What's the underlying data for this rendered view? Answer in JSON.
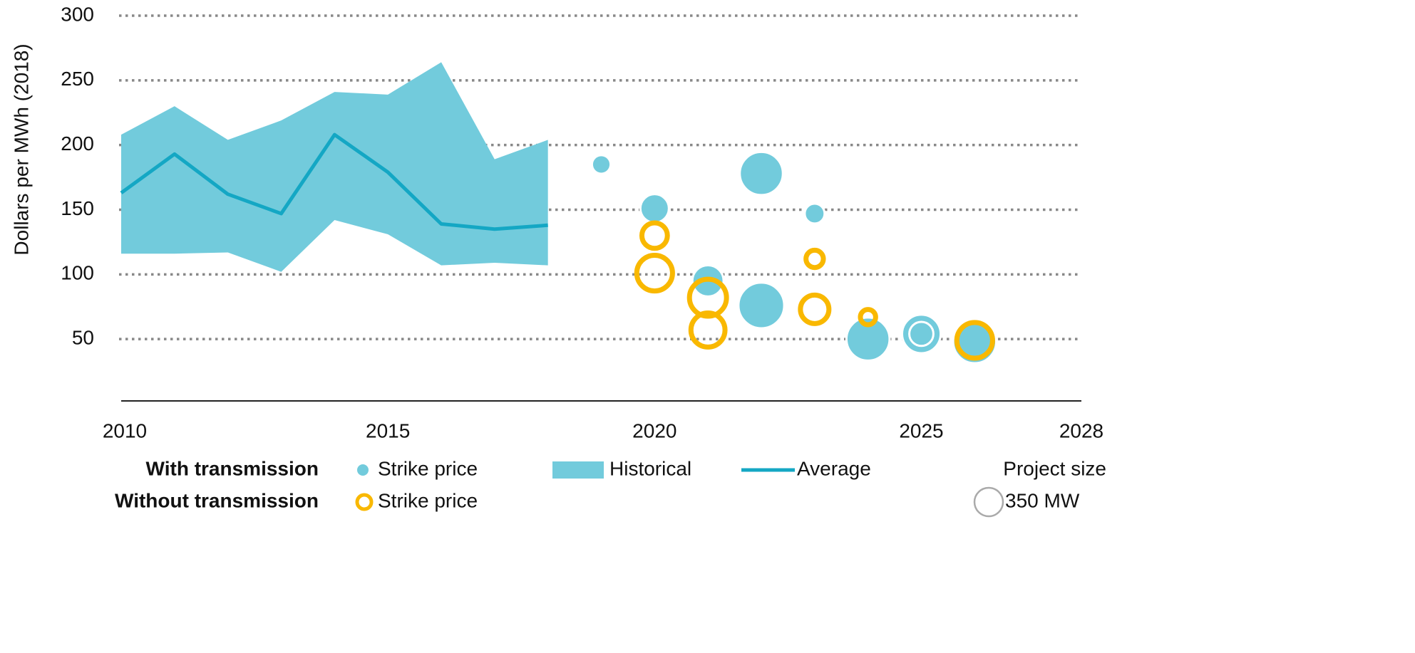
{
  "chart_data": {
    "type": "bubble",
    "y_label": "Dollars per MWh (2018)",
    "xlim": [
      2010,
      2028
    ],
    "xticks": [
      2010,
      2015,
      2020,
      2025,
      2028
    ],
    "ylim": [
      0,
      300
    ],
    "yticks": [
      50,
      100,
      150,
      200,
      250,
      300
    ],
    "grid": true,
    "series": [
      {
        "name": "Historical",
        "type": "area",
        "group": "With transmission",
        "color": "#72cbdc",
        "x": [
          2010,
          2011,
          2012,
          2013,
          2014,
          2015,
          2016,
          2017,
          2018
        ],
        "upper": [
          208,
          230,
          204,
          219,
          241,
          239,
          264,
          189,
          204
        ],
        "lower": [
          116,
          116,
          117,
          102,
          142,
          131,
          107,
          109,
          107
        ]
      },
      {
        "name": "Average",
        "type": "line",
        "group": "With transmission",
        "color": "#14a7c4",
        "x": [
          2010,
          2011,
          2012,
          2013,
          2014,
          2015,
          2016,
          2017,
          2018
        ],
        "values": [
          163,
          193,
          162,
          147,
          208,
          179,
          139,
          135,
          138
        ]
      },
      {
        "name": "Strike price",
        "type": "bubble",
        "group": "With transmission",
        "color": "#72cbdc",
        "x": [
          2022,
          2022,
          2024,
          2026,
          2025,
          2021,
          2020,
          2025,
          2023,
          2019
        ],
        "values": [
          178,
          76,
          50,
          48,
          54,
          95,
          151,
          54,
          147,
          185
        ],
        "sizes": [
          800,
          900,
          800,
          800,
          640,
          420,
          350,
          250,
          170,
          150
        ]
      },
      {
        "name": "Strike price",
        "type": "ring",
        "group": "Without transmission",
        "color": "#f9b800",
        "x": [
          2020,
          2020,
          2021,
          2021,
          2023,
          2023,
          2024,
          2026
        ],
        "values": [
          130,
          101,
          82,
          57,
          112,
          73,
          67,
          49
        ],
        "sizes": [
          280,
          550,
          590,
          500,
          130,
          350,
          100,
          550
        ]
      }
    ],
    "size_legend": {
      "title": "Project  size",
      "value": 350,
      "label": "350 MW"
    }
  }
}
